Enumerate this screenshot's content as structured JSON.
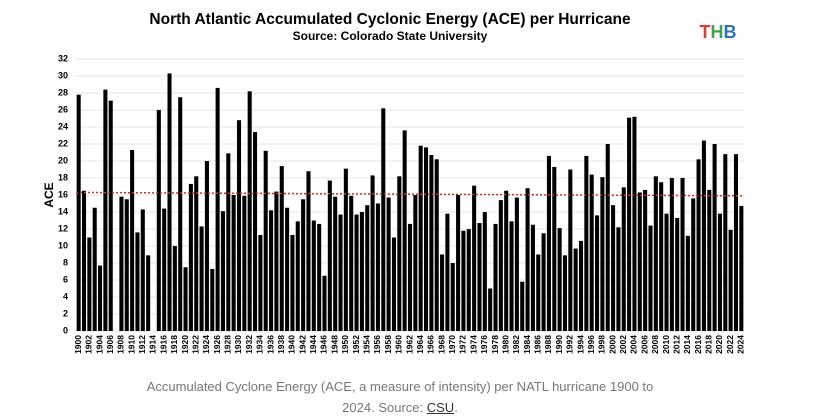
{
  "chart_data": {
    "type": "bar",
    "title": "North Atlantic Accumulated Cyclonic Energy (ACE) per Hurricane",
    "subtitle": "Source: Colorado State University",
    "logo": "THB",
    "y_label": "ACE",
    "categories": [
      "1900",
      null,
      "1902",
      null,
      "1904",
      null,
      "1906",
      null,
      "1908",
      null,
      "1910",
      null,
      "1912",
      null,
      "1914",
      null,
      "1916",
      null,
      "1918",
      null,
      "1920",
      null,
      "1922",
      null,
      "1924",
      null,
      "1926",
      null,
      "1928",
      null,
      "1930",
      null,
      "1932",
      null,
      "1934",
      null,
      "1936",
      null,
      "1938",
      null,
      "1940",
      null,
      "1942",
      null,
      "1944",
      null,
      "1946",
      null,
      "1948",
      null,
      "1950",
      null,
      "1952",
      null,
      "1954",
      null,
      "1956",
      null,
      "1958",
      null,
      "1960",
      null,
      "1962",
      null,
      "1964",
      null,
      "1966",
      null,
      "1968",
      null,
      "1970",
      null,
      "1972",
      null,
      "1974",
      null,
      "1976",
      null,
      "1978",
      null,
      "1980",
      null,
      "1982",
      null,
      "1984",
      null,
      "1986",
      null,
      "1988",
      null,
      "1990",
      null,
      "1992",
      null,
      "1994",
      null,
      "1996",
      null,
      "1998",
      null,
      "2000",
      null,
      "2002",
      null,
      "2004",
      null,
      "2006",
      null,
      "2008",
      null,
      "2010",
      null,
      "2012",
      null,
      "2014",
      null,
      "2016",
      null,
      "2018",
      null,
      "2020",
      null,
      "2022",
      null,
      "2024"
    ],
    "values": [
      27.8,
      16.5,
      11,
      14.5,
      7.7,
      28.4,
      27.1,
      null,
      15.8,
      15.5,
      21.3,
      11.6,
      14.3,
      8.9,
      null,
      26,
      14.4,
      30.3,
      10,
      27.5,
      7.5,
      17.3,
      18.2,
      12.3,
      20,
      7.3,
      28.6,
      14.1,
      20.9,
      16,
      24.8,
      15.9,
      28.2,
      23.4,
      11.3,
      21.2,
      14.2,
      16.4,
      19.4,
      14.5,
      11.3,
      12.9,
      15.5,
      18.8,
      13,
      12.6,
      6.5,
      17.7,
      15.8,
      13.7,
      19.1,
      15.9,
      13.7,
      14,
      14.8,
      18.3,
      15,
      26.2,
      15.7,
      11,
      18.2,
      23.6,
      12.6,
      16,
      21.8,
      21.6,
      20.7,
      20.2,
      9,
      13.8,
      8,
      16,
      11.8,
      12,
      17.1,
      12.7,
      14,
      5,
      12.6,
      15.4,
      16.5,
      12.9,
      15.7,
      5.8,
      16.8,
      12.5,
      9,
      11.5,
      20.6,
      19.3,
      12.1,
      8.9,
      19,
      9.7,
      10.6,
      20.6,
      18.4,
      13.6,
      18.1,
      22,
      14.8,
      12.2,
      16.9,
      25.1,
      25.2,
      16.3,
      16.6,
      12.4,
      18.2,
      17.5,
      13.8,
      18,
      13.3,
      18,
      11.2,
      15.6,
      20.2,
      22.4,
      16.6,
      22,
      13.8,
      20.8,
      11.9,
      20.8,
      14.7
    ],
    "color": "#000000",
    "trend": {
      "values": [
        16.3,
        15.9
      ],
      "color": "#c0392b"
    },
    "ylim": [
      0,
      32
    ],
    "yticks": [
      0,
      2,
      4,
      6,
      8,
      10,
      12,
      14,
      16,
      18,
      20,
      22,
      24,
      26,
      28,
      30,
      32
    ],
    "grid": true,
    "caption": {
      "text": "Accumulated Cyclone Energy (ACE, a measure of intensity) per NATL hurricane 1900 to 2024. Source: ",
      "link": "CSU",
      "end": "."
    }
  }
}
